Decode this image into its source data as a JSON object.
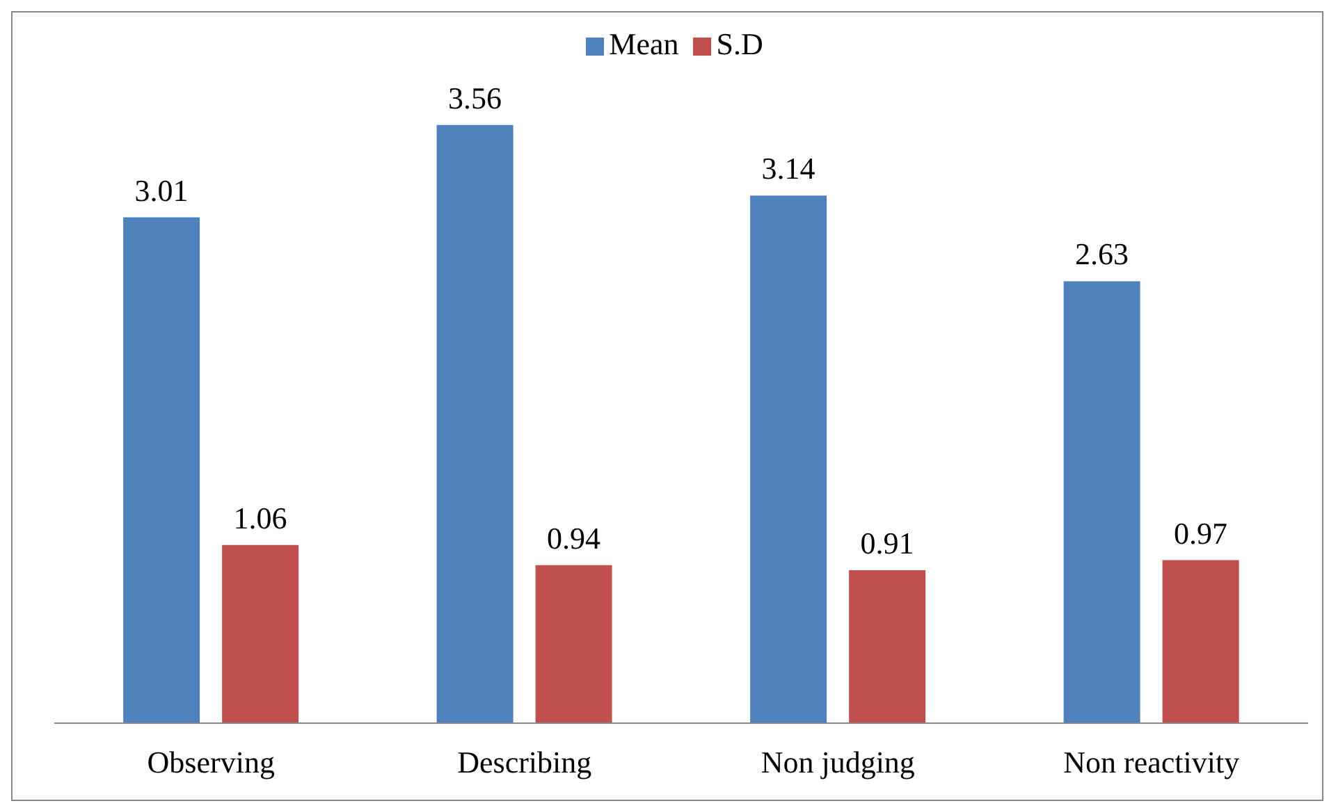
{
  "chart_data": {
    "type": "bar",
    "categories": [
      "Observing",
      "Describing",
      "Non judging",
      "Non reactivity"
    ],
    "series": [
      {
        "name": "Mean",
        "color": "#4f81bd",
        "values": [
          3.01,
          3.56,
          3.14,
          2.63
        ]
      },
      {
        "name": "S.D",
        "color": "#c0504d",
        "values": [
          1.06,
          0.94,
          0.91,
          0.97
        ]
      }
    ],
    "data_labels": true,
    "legend": "top",
    "grid": false
  }
}
